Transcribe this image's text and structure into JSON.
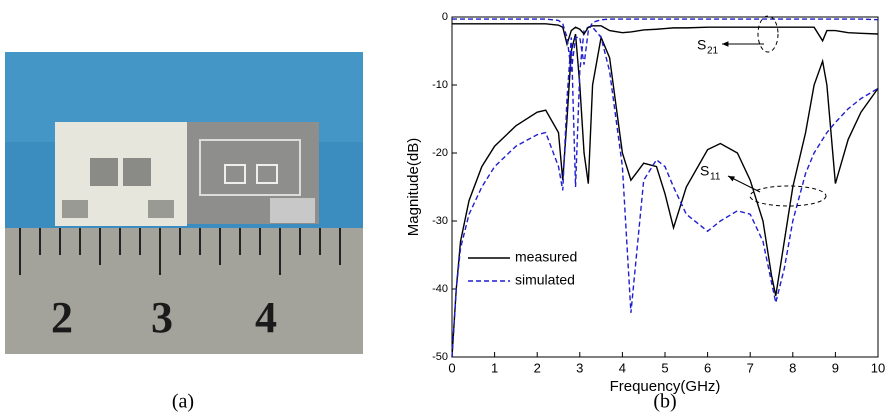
{
  "photo": {
    "ruler_labels": [
      "2",
      "3",
      "4"
    ]
  },
  "captions": [
    "(a)",
    "(b)"
  ],
  "chart_data": {
    "type": "line",
    "xlabel": "Frequency(GHz)",
    "ylabel": "Magnitude(dB)",
    "x": [
      0,
      0.05,
      0.1,
      0.2,
      0.4,
      0.7,
      1,
      1.5,
      2,
      2.2,
      2.5,
      2.6,
      2.7,
      2.8,
      2.9,
      3,
      3.1,
      3.2,
      3.3,
      3.5,
      3.7,
      4,
      4.2,
      4.5,
      4.8,
      5,
      5.2,
      5.5,
      6,
      6.3,
      6.7,
      7,
      7.3,
      7.5,
      7.6,
      7.8,
      8,
      8.3,
      8.5,
      8.7,
      8.8,
      9,
      9.3,
      9.6,
      10
    ],
    "series": [
      {
        "name": "measured",
        "color": "#000000",
        "dash": false,
        "values": [
          -50,
          -45,
          -40,
          -33,
          -27,
          -22,
          -19,
          -16,
          -14,
          -13.7,
          -17,
          -24,
          -15,
          -5,
          -2.5,
          -10,
          -20,
          -24.5,
          -10,
          -3,
          -6,
          -20,
          -24,
          -21.5,
          -22,
          -26,
          -31,
          -25,
          -19.5,
          -18.6,
          -20,
          -24,
          -30,
          -38,
          -41,
          -33,
          -25,
          -17,
          -10,
          -6.5,
          -10,
          -24.5,
          -18,
          -14,
          -10.5
        ]
      },
      {
        "name": "simulated",
        "color": "#1f1fd0",
        "dash": true,
        "values": [
          -50,
          -45,
          -40,
          -34,
          -29,
          -25,
          -22,
          -19,
          -17.3,
          -17,
          -22,
          -25.5,
          -12,
          -3,
          -25,
          -8,
          -2,
          -1.5,
          -1.5,
          -3,
          -8,
          -22,
          -43.5,
          -24,
          -21,
          -22,
          -25,
          -29,
          -31.5,
          -30,
          -28.5,
          -29,
          -33,
          -39,
          -42,
          -37,
          -30,
          -23,
          -20,
          -18,
          -17,
          -15.5,
          -13.5,
          -12,
          -10.5
        ]
      },
      {
        "color": "#000000",
        "dash": false,
        "values": [
          -1,
          -1,
          -1,
          -1,
          -1,
          -1,
          -1,
          -1,
          -1,
          -1,
          -1.2,
          -1.5,
          -4,
          -2,
          -1.5,
          -1.8,
          -2.5,
          -1.5,
          -1.3,
          -1.3,
          -2,
          -2.3,
          -2.2,
          -1.9,
          -1.8,
          -1.7,
          -1.6,
          -1.6,
          -1.5,
          -1.5,
          -1.5,
          -1.5,
          -1.5,
          -1.5,
          -1.5,
          -1.5,
          -1.5,
          -1.5,
          -1.5,
          -3.5,
          -2,
          -2,
          -2.3,
          -2.4,
          -2.5
        ]
      },
      {
        "color": "#1f1fd0",
        "dash": true,
        "values": [
          -0.3,
          -0.3,
          -0.3,
          -0.3,
          -0.3,
          -0.3,
          -0.3,
          -0.3,
          -0.3,
          -0.3,
          -0.5,
          -1,
          -3,
          -8,
          -3,
          -3,
          -7,
          -2,
          -0.8,
          -0.4,
          -0.3,
          -0.3,
          -0.3,
          -0.3,
          -0.3,
          -0.3,
          -0.3,
          -0.3,
          -0.3,
          -0.3,
          -0.3,
          -0.3,
          -0.3,
          -0.3,
          -0.3,
          -0.3,
          -0.3,
          -0.3,
          -0.3,
          -0.3,
          -0.3,
          -0.3,
          -0.3,
          -0.3,
          -0.4
        ]
      }
    ],
    "annotations": [
      {
        "text": "S",
        "sub": "21"
      },
      {
        "text": "S",
        "sub": "11"
      }
    ],
    "xlim": [
      0,
      10
    ],
    "ylim": [
      -50,
      0
    ],
    "xticks": [
      0,
      1,
      2,
      3,
      4,
      5,
      6,
      7,
      8,
      9,
      10
    ],
    "yticks": [
      -50,
      -40,
      -30,
      -20,
      -10,
      0
    ]
  }
}
